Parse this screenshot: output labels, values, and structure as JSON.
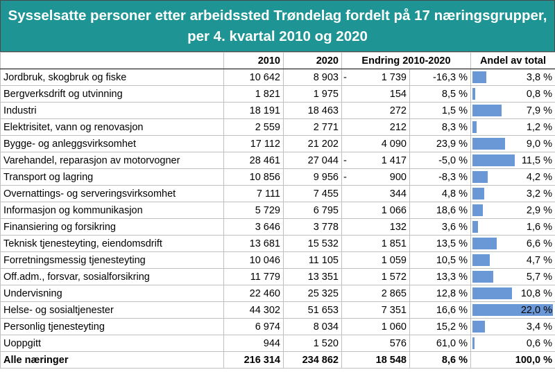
{
  "title_line1": "Sysselsatte personer etter arbeidssted Trøndelag fordelt på 17 næringsgrupper,",
  "title_line2": "per 4. kvartal 2010 og 2020",
  "headers": {
    "label": "",
    "y2010": "2010",
    "y2020": "2020",
    "change": "Endring 2010-2020",
    "share": "Andel av total"
  },
  "rows": [
    {
      "name": "Jordbruk, skogbruk og fiske",
      "v2010": "10 642",
      "v2020": "8 903",
      "sign": "-",
      "abs": "1 739",
      "pct": "-16,3 %",
      "share": "3,8 %"
    },
    {
      "name": "Bergverksdrift og utvinning",
      "v2010": "1 821",
      "v2020": "1 975",
      "sign": "",
      "abs": "154",
      "pct": "8,5 %",
      "share": "0,8 %"
    },
    {
      "name": "Industri",
      "v2010": "18 191",
      "v2020": "18 463",
      "sign": "",
      "abs": "272",
      "pct": "1,5 %",
      "share": "7,9 %"
    },
    {
      "name": "Elektrisitet, vann og renovasjon",
      "v2010": "2 559",
      "v2020": "2 771",
      "sign": "",
      "abs": "212",
      "pct": "8,3 %",
      "share": "1,2 %"
    },
    {
      "name": "Bygge- og anleggsvirksomhet",
      "v2010": "17 112",
      "v2020": "21 202",
      "sign": "",
      "abs": "4 090",
      "pct": "23,9 %",
      "share": "9,0 %"
    },
    {
      "name": "Varehandel, reparasjon av motorvogner",
      "v2010": "28 461",
      "v2020": "27 044",
      "sign": "-",
      "abs": "1 417",
      "pct": "-5,0 %",
      "share": "11,5 %"
    },
    {
      "name": "Transport og lagring",
      "v2010": "10 856",
      "v2020": "9 956",
      "sign": "-",
      "abs": "900",
      "pct": "-8,3 %",
      "share": "4,2 %"
    },
    {
      "name": "Overnattings- og serveringsvirksomhet",
      "v2010": "7 111",
      "v2020": "7 455",
      "sign": "",
      "abs": "344",
      "pct": "4,8 %",
      "share": "3,2 %"
    },
    {
      "name": "Informasjon og kommunikasjon",
      "v2010": "5 729",
      "v2020": "6 795",
      "sign": "",
      "abs": "1 066",
      "pct": "18,6 %",
      "share": "2,9 %"
    },
    {
      "name": "Finansiering og forsikring",
      "v2010": "3 646",
      "v2020": "3 778",
      "sign": "",
      "abs": "132",
      "pct": "3,6 %",
      "share": "1,6 %"
    },
    {
      "name": "Teknisk tjenesteyting, eiendomsdrift",
      "v2010": "13 681",
      "v2020": "15 532",
      "sign": "",
      "abs": "1 851",
      "pct": "13,5 %",
      "share": "6,6 %"
    },
    {
      "name": "Forretningsmessig tjenesteyting",
      "v2010": "10 046",
      "v2020": "11 105",
      "sign": "",
      "abs": "1 059",
      "pct": "10,5 %",
      "share": "4,7 %"
    },
    {
      "name": "Off.adm., forsvar, sosialforsikring",
      "v2010": "11 779",
      "v2020": "13 351",
      "sign": "",
      "abs": "1 572",
      "pct": "13,3 %",
      "share": "5,7 %"
    },
    {
      "name": "Undervisning",
      "v2010": "22 460",
      "v2020": "25 325",
      "sign": "",
      "abs": "2 865",
      "pct": "12,8 %",
      "share": "10,8 %"
    },
    {
      "name": "Helse- og sosialtjenester",
      "v2010": "44 302",
      "v2020": "51 653",
      "sign": "",
      "abs": "7 351",
      "pct": "16,6 %",
      "share": "22,0 %"
    },
    {
      "name": "Personlig tjenesteyting",
      "v2010": "6 974",
      "v2020": "8 034",
      "sign": "",
      "abs": "1 060",
      "pct": "15,2 %",
      "share": "3,4 %"
    },
    {
      "name": "Uoppgitt",
      "v2010": "944",
      "v2020": "1 520",
      "sign": "",
      "abs": "576",
      "pct": "61,0 %",
      "share": "0,6 %"
    }
  ],
  "total": {
    "name": "Alle næringer",
    "v2010": "216 314",
    "v2020": "234 862",
    "sign": "",
    "abs": "18 548",
    "pct": "8,6 %",
    "share": "100,0 %"
  },
  "chart_data": {
    "type": "table",
    "title": "Sysselsatte personer etter arbeidssted Trøndelag fordelt på 17 næringsgrupper, per 4. kvartal 2010 og 2020",
    "columns": [
      "2010",
      "2020",
      "Endring 2010-2020",
      "Endring 2010-2020 (%)",
      "Andel av total"
    ],
    "share_bar_max": 22.0,
    "share_values": [
      3.8,
      0.8,
      7.9,
      1.2,
      9.0,
      11.5,
      4.2,
      3.2,
      2.9,
      1.6,
      6.6,
      4.7,
      5.7,
      10.8,
      22.0,
      3.4,
      0.6
    ],
    "bar_color": "#6a97d6",
    "header_color": "#1f9494"
  }
}
